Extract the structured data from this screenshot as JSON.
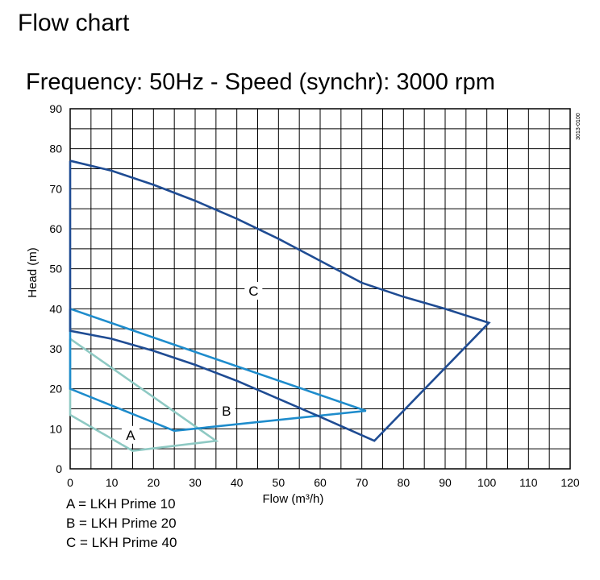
{
  "page": {
    "heading": "Flow chart"
  },
  "chart_data": {
    "type": "line",
    "title": "Frequency: 50Hz - Speed (synchr): 3000 rpm",
    "xlabel": "Flow (m³/h)",
    "ylabel": "Head (m)",
    "xlim": [
      0,
      120
    ],
    "ylim": [
      0,
      90
    ],
    "xticks": [
      0,
      10,
      20,
      30,
      40,
      50,
      60,
      70,
      80,
      90,
      100,
      110,
      120
    ],
    "yticks": [
      0,
      10,
      20,
      30,
      40,
      50,
      60,
      70,
      80,
      90
    ],
    "grid": true,
    "code": "3013-0100",
    "series": [
      {
        "name": "A",
        "color": "#8ec9c3",
        "points": [
          [
            0,
            32.5
          ],
          [
            35,
            7
          ],
          [
            15,
            4.5
          ],
          [
            0,
            13.5
          ],
          [
            0,
            32.5
          ]
        ],
        "label_at": [
          14.5,
          8.5
        ]
      },
      {
        "name": "B",
        "color": "#1e8ccc",
        "points": [
          [
            0,
            40
          ],
          [
            71,
            14.5
          ],
          [
            25,
            9.5
          ],
          [
            0,
            20
          ],
          [
            0,
            40
          ]
        ],
        "label_at": [
          37.5,
          14.5
        ]
      },
      {
        "name": "C",
        "color": "#1f4c93",
        "points": [
          [
            0,
            77
          ],
          [
            10,
            74.5
          ],
          [
            20,
            71
          ],
          [
            30,
            67
          ],
          [
            40,
            62.5
          ],
          [
            50,
            57.5
          ],
          [
            60,
            52
          ],
          [
            70,
            46.5
          ],
          [
            80,
            43
          ],
          [
            90,
            40
          ],
          [
            100.5,
            36.5
          ],
          [
            73,
            7
          ],
          [
            60,
            13
          ],
          [
            50,
            17.5
          ],
          [
            40,
            22
          ],
          [
            30,
            26
          ],
          [
            20,
            29.5
          ],
          [
            10,
            32.5
          ],
          [
            0,
            34.5
          ],
          [
            0,
            77
          ]
        ],
        "label_at": [
          44,
          44.5
        ]
      }
    ],
    "legend": {
      "placement": "bottom-left",
      "entries": [
        "A = LKH Prime 10",
        "B = LKH Prime 20",
        "C = LKH Prime 40"
      ]
    }
  }
}
